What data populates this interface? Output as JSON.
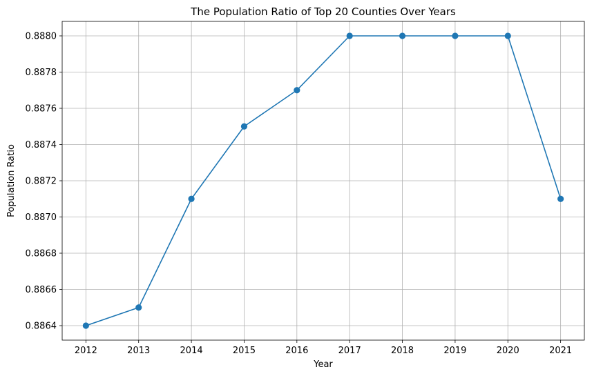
{
  "chart_data": {
    "type": "line",
    "title": "The Population Ratio of Top 20 Counties Over Years",
    "xlabel": "Year",
    "ylabel": "Population Ratio",
    "x": [
      2012,
      2013,
      2014,
      2015,
      2016,
      2017,
      2018,
      2019,
      2020,
      2021
    ],
    "x_tick_labels": [
      "2012",
      "2013",
      "2014",
      "2015",
      "2016",
      "2017",
      "2018",
      "2019",
      "2020",
      "2021"
    ],
    "series": [
      {
        "values": [
          0.8864,
          0.8865,
          0.8871,
          0.8875,
          0.8877,
          0.888,
          0.888,
          0.888,
          0.888,
          0.8871
        ],
        "color": "#1f77b4",
        "marker": "circle"
      }
    ],
    "y_ticks": [
      0.8864,
      0.8866,
      0.8868,
      0.887,
      0.8872,
      0.8874,
      0.8876,
      0.8878,
      0.888
    ],
    "y_tick_labels": [
      "0.8864",
      "0.8866",
      "0.8868",
      "0.8870",
      "0.8872",
      "0.8874",
      "0.8876",
      "0.8878",
      "0.8880"
    ],
    "xlim": [
      2011.55,
      2021.45
    ],
    "ylim": [
      0.88632,
      0.88808
    ],
    "grid": true,
    "legend": "none"
  }
}
